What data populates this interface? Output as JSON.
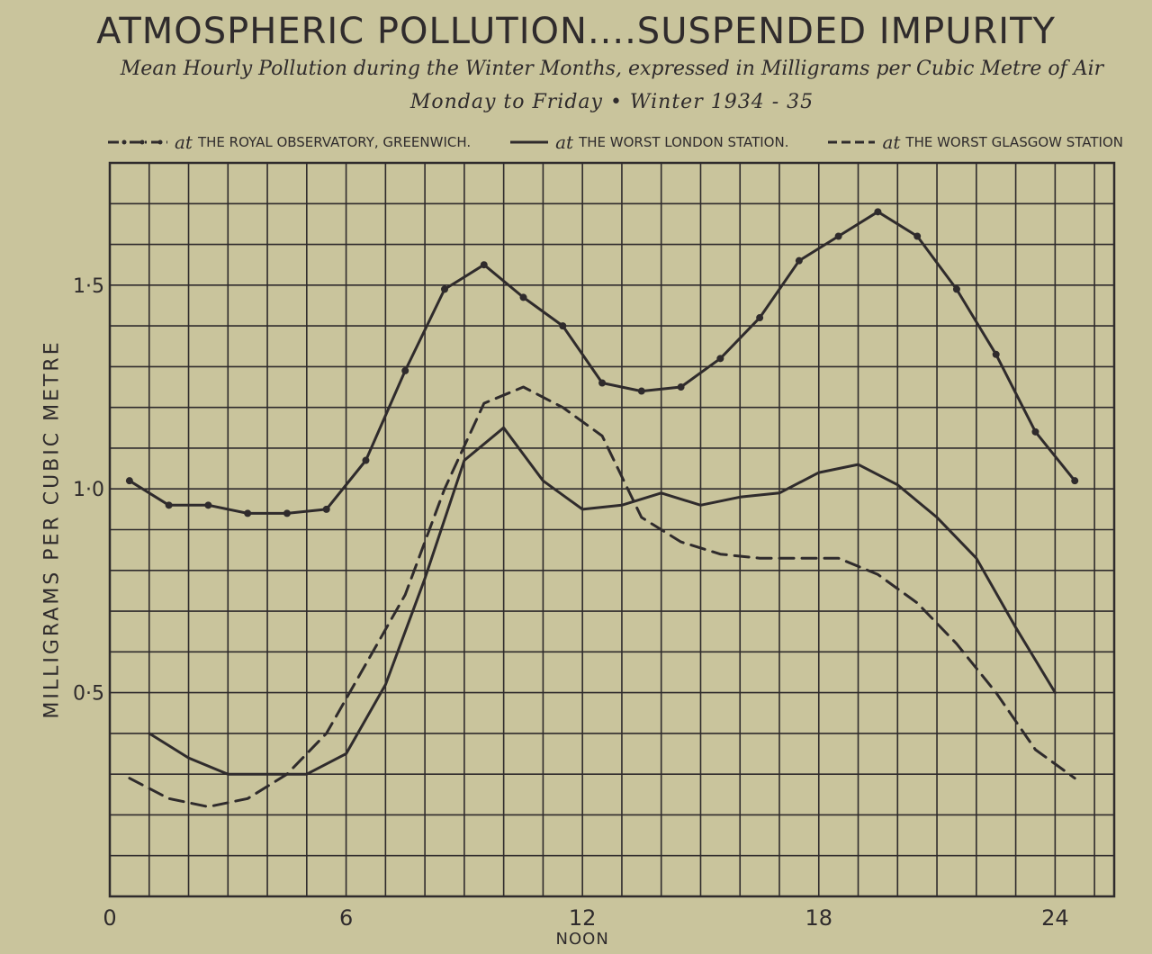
{
  "chart_data": {
    "type": "line",
    "title": "ATMOSPHERIC POLLUTION....SUSPENDED IMPURITY",
    "subtitle": "Mean Hourly Pollution during the Winter Months, expressed in Milligrams per Cubic Metre of Air",
    "period": "Monday to Friday • Winter 1934 - 35",
    "ylabel": "MILLIGRAMS PER CUBIC METRE",
    "xlabel": "NOON",
    "xlim": [
      0,
      25.5
    ],
    "ylim": [
      0,
      1.8
    ],
    "grid": true,
    "x_ticks": [
      {
        "value": 0,
        "label": "0"
      },
      {
        "value": 6,
        "label": "6"
      },
      {
        "value": 12,
        "label": "12"
      },
      {
        "value": 18,
        "label": "18"
      },
      {
        "value": 24,
        "label": "24"
      }
    ],
    "y_ticks": [
      {
        "value": 0.5,
        "label": "0·5"
      },
      {
        "value": 1.0,
        "label": "1·0"
      },
      {
        "value": 1.5,
        "label": "1·5"
      }
    ],
    "legend_position": "top",
    "series": [
      {
        "name": "THE ROYAL OBSERVATORY, GREENWICH.",
        "style": "dash-dot",
        "x": [
          0.5,
          1.5,
          2.5,
          3.5,
          4.5,
          5.5,
          6.5,
          7.5,
          8.5,
          9.5,
          10.5,
          11.5,
          12.5,
          13.5,
          14.5,
          15.5,
          16.5,
          17.5,
          18.5,
          19.5,
          20.5,
          21.5,
          22.5,
          23.5,
          24.5
        ],
        "values": [
          1.02,
          0.96,
          0.96,
          0.94,
          0.94,
          0.95,
          1.07,
          1.29,
          1.49,
          1.55,
          1.47,
          1.4,
          1.26,
          1.24,
          1.25,
          1.32,
          1.42,
          1.56,
          1.62,
          1.68,
          1.62,
          1.49,
          1.33,
          1.14,
          1.02
        ]
      },
      {
        "name": "THE WORST LONDON STATION.",
        "style": "solid",
        "x": [
          1,
          2,
          3,
          4,
          5,
          6,
          7,
          8,
          9,
          10,
          11,
          12,
          13,
          14,
          15,
          16,
          17,
          18,
          19,
          20,
          21,
          22,
          23,
          24
        ],
        "values": [
          0.4,
          0.34,
          0.3,
          0.3,
          0.3,
          0.35,
          0.52,
          0.78,
          1.07,
          1.15,
          1.02,
          0.95,
          0.96,
          0.99,
          0.96,
          0.98,
          0.99,
          1.04,
          1.06,
          1.01,
          0.93,
          0.83,
          0.66,
          0.5
        ]
      },
      {
        "name": "THE WORST GLASGOW STATION",
        "style": "dashed",
        "x": [
          0.5,
          1.5,
          2.5,
          3.5,
          4.5,
          5.5,
          6.5,
          7.5,
          8.5,
          9.5,
          10.5,
          11.5,
          12.5,
          13.5,
          14.5,
          15.5,
          16.5,
          17.5,
          18.5,
          19.5,
          20.5,
          21.5,
          22.5,
          23.5,
          24.5
        ],
        "values": [
          0.29,
          0.24,
          0.22,
          0.24,
          0.3,
          0.4,
          0.57,
          0.74,
          1.0,
          1.21,
          1.25,
          1.2,
          1.13,
          0.93,
          0.87,
          0.84,
          0.83,
          0.83,
          0.83,
          0.79,
          0.72,
          0.62,
          0.5,
          0.36,
          0.29
        ]
      }
    ]
  },
  "legend": {
    "prefix": "at"
  },
  "colors": {
    "background": "#c9c49c",
    "ink": "#2f2b2c"
  }
}
